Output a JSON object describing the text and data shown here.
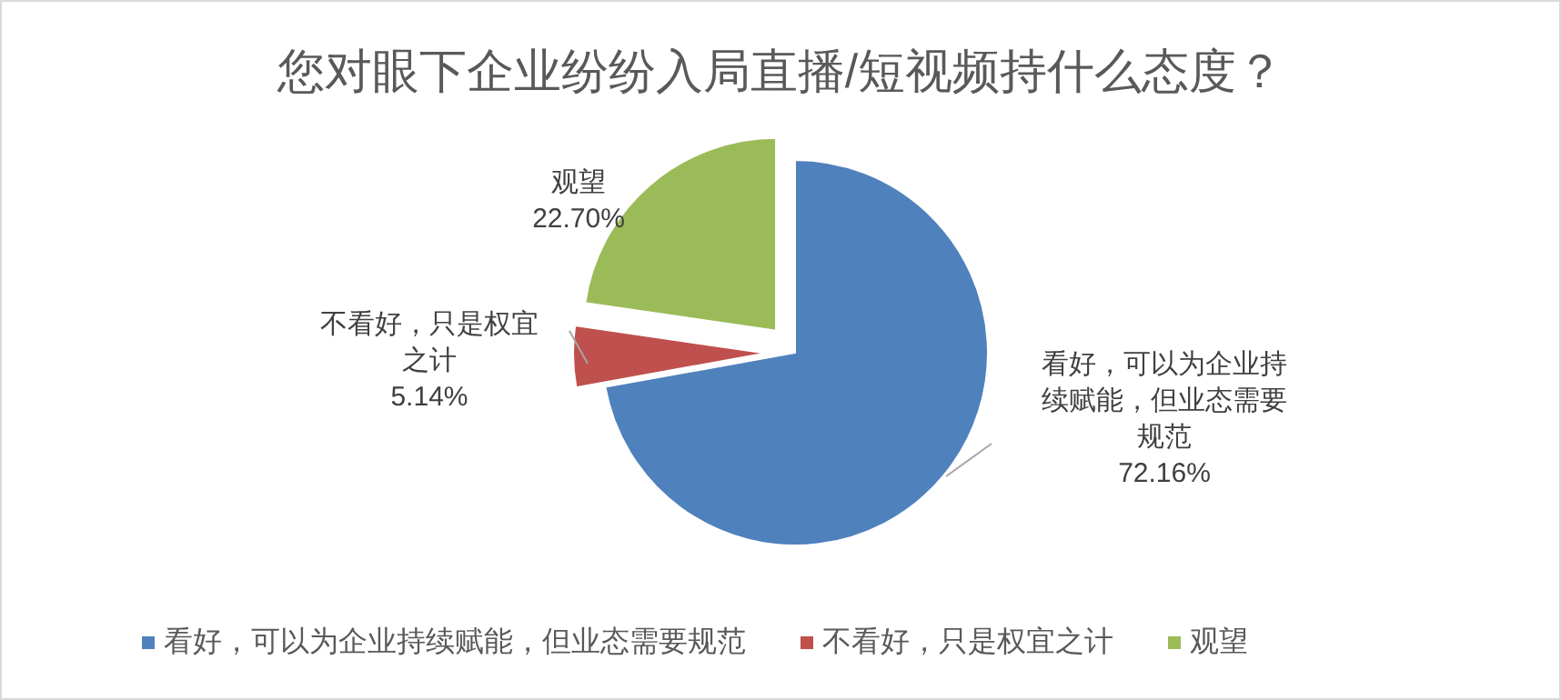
{
  "chart_data": {
    "type": "pie",
    "title": "您对眼下企业纷纷入局直播/短视频持什么态度？",
    "categories": [
      "看好，可以为企业持续赋能，但业态需要规范",
      "不看好，只是权宜之计",
      "观望"
    ],
    "values": [
      72.16,
      5.14,
      22.7
    ],
    "colors": [
      "#4f81bd",
      "#c0504d",
      "#9bbb59"
    ],
    "value_labels": [
      "72.16%",
      "5.14%",
      "22.70%"
    ],
    "legend": "bottom"
  }
}
